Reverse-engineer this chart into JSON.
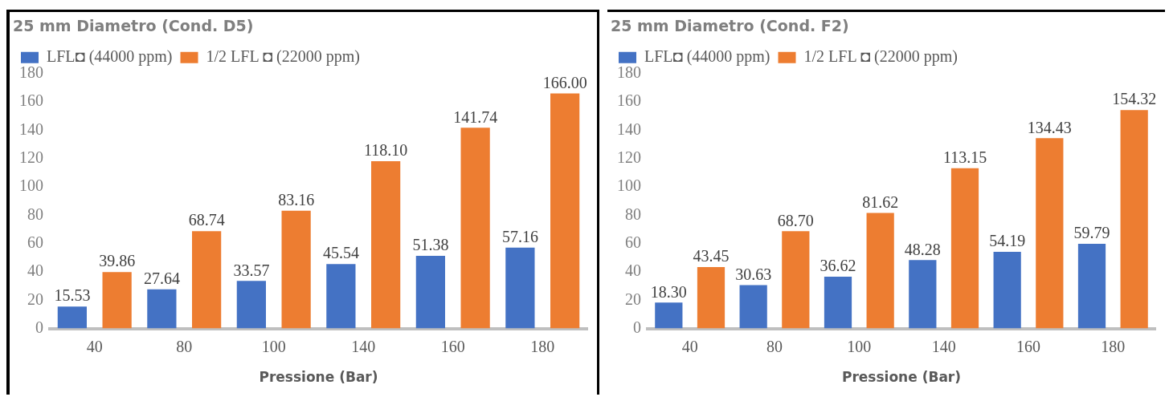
{
  "chart_data": [
    {
      "type": "bar",
      "title": "25 mm Diametro (Cond. D5)",
      "xlabel": "Pressione (Bar)",
      "categories": [
        "40",
        "80",
        "100",
        "140",
        "160",
        "180"
      ],
      "series": [
        {
          "name": "LFL◘ (44000 ppm)",
          "color": "#4472c4",
          "values": [
            15.53,
            27.64,
            33.57,
            45.54,
            51.38,
            57.16
          ],
          "value_labels": [
            "15.53",
            "27.64",
            "33.57",
            "45.54",
            "51.38",
            "57.16"
          ]
        },
        {
          "name": "1/2 LFL ◘ (22000 ppm)",
          "color": "#ed7d31",
          "values": [
            39.86,
            68.74,
            83.16,
            118.1,
            141.74,
            166
          ],
          "value_labels": [
            "39.86",
            "68.74",
            "83.16",
            "118.10",
            "141.74",
            "166.00"
          ]
        }
      ],
      "ylim": [
        0,
        180
      ],
      "yticks": [
        0,
        20,
        40,
        60,
        80,
        100,
        120,
        140,
        160,
        180
      ],
      "grid": false,
      "legend": "top left"
    },
    {
      "type": "bar",
      "title": "25 mm Diametro (Cond. F2)",
      "xlabel": "Pressione (Bar)",
      "categories": [
        "40",
        "80",
        "100",
        "140",
        "160",
        "180"
      ],
      "series": [
        {
          "name": "LFL◘ (44000 ppm)",
          "color": "#4472c4",
          "values": [
            18.3,
            30.63,
            36.62,
            48.28,
            54.19,
            59.79
          ],
          "value_labels": [
            "18.30",
            "30.63",
            "36.62",
            "48.28",
            "54.19",
            "59.79"
          ]
        },
        {
          "name": "1/2 LFL ◘ (22000 ppm)",
          "color": "#ed7d31",
          "values": [
            43.45,
            68.7,
            81.62,
            113.15,
            134.43,
            154.32
          ],
          "value_labels": [
            "43.45",
            "68.70",
            "81.62",
            "113.15",
            "134.43",
            "154.32"
          ]
        }
      ],
      "ylim": [
        0,
        180
      ],
      "yticks": [
        0,
        20,
        40,
        60,
        80,
        100,
        120,
        140,
        160,
        180
      ],
      "grid": false,
      "legend": "top left"
    }
  ]
}
